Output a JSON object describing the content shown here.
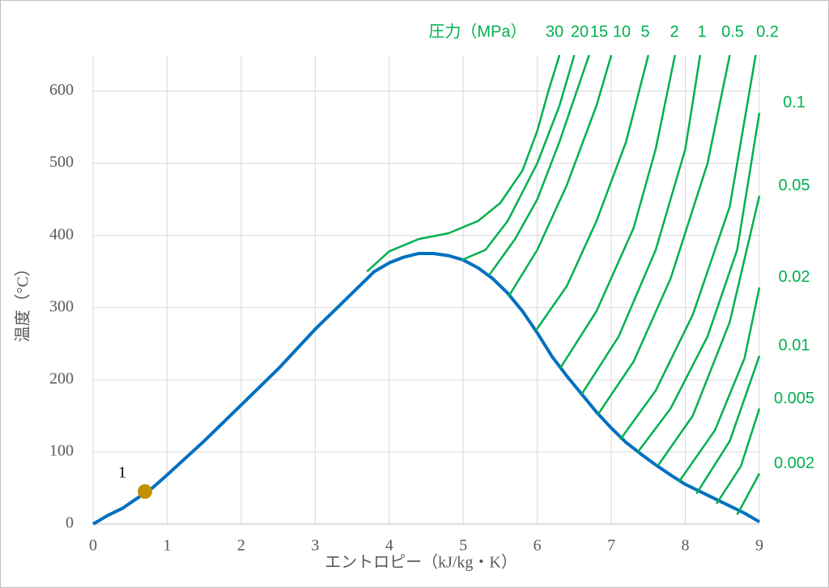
{
  "chart_data": {
    "type": "line",
    "title": "圧力（MPa）",
    "x_label": "エントロピー（kJ/kg・K）",
    "y_label": "温度（°C）",
    "xlim": [
      0,
      9
    ],
    "ylim": [
      0,
      650
    ],
    "xticks": [
      0,
      1,
      2,
      3,
      4,
      5,
      6,
      7,
      8,
      9
    ],
    "yticks": [
      0,
      100,
      200,
      300,
      400,
      500,
      600
    ],
    "grid": true,
    "series": [
      {
        "color": "#0070c0",
        "x": [
          0,
          0.2,
          0.4,
          0.6,
          0.8,
          1.0,
          1.5,
          2.0,
          2.5,
          3.0,
          3.5,
          3.8,
          4.0,
          4.2,
          4.4,
          4.6,
          4.8,
          5.0,
          5.2,
          5.4,
          5.6,
          5.8,
          6.0,
          6.2,
          6.4,
          6.6,
          6.8,
          7.0,
          7.2,
          7.4,
          7.6,
          7.8,
          8.0,
          8.2,
          8.4,
          8.6,
          8.8,
          9.0
        ],
        "y": [
          0,
          12,
          22,
          36,
          50,
          68,
          115,
          165,
          215,
          270,
          320,
          350,
          362,
          370,
          375,
          375,
          372,
          366,
          355,
          340,
          320,
          295,
          265,
          232,
          205,
          180,
          155,
          133,
          113,
          97,
          82,
          68,
          55,
          45,
          35,
          25,
          15,
          3
        ]
      },
      {
        "name": "30",
        "color": "#00b050",
        "x": [
          3.7,
          4.0,
          4.4,
          4.8,
          5.2,
          5.5,
          5.8,
          6.0,
          6.15,
          6.3
        ],
        "y": [
          350,
          378,
          395,
          403,
          420,
          445,
          490,
          545,
          600,
          650
        ]
      },
      {
        "name": "20",
        "color": "#00b050",
        "x": [
          4.98,
          5.3,
          5.6,
          6.0,
          6.3,
          6.5
        ],
        "y": [
          366,
          380,
          420,
          500,
          580,
          650
        ]
      },
      {
        "name": "15",
        "color": "#00b050",
        "x": [
          5.35,
          5.7,
          6.0,
          6.3,
          6.7
        ],
        "y": [
          345,
          395,
          450,
          530,
          650
        ]
      },
      {
        "name": "10",
        "color": "#00b050",
        "x": [
          5.61,
          6.0,
          6.4,
          6.8,
          7.0
        ],
        "y": [
          315,
          380,
          470,
          580,
          650
        ]
      },
      {
        "name": "5",
        "color": "#00b050",
        "x": [
          5.98,
          6.4,
          6.8,
          7.2,
          7.5
        ],
        "y": [
          268,
          330,
          420,
          530,
          650
        ]
      },
      {
        "name": "2",
        "color": "#00b050",
        "x": [
          6.31,
          6.8,
          7.3,
          7.6,
          7.86
        ],
        "y": [
          216,
          295,
          410,
          520,
          650
        ]
      },
      {
        "name": "1",
        "color": "#00b050",
        "x": [
          6.6,
          7.1,
          7.6,
          8.0,
          8.2
        ],
        "y": [
          180,
          260,
          380,
          520,
          650
        ]
      },
      {
        "name": "0.5",
        "color": "#00b050",
        "x": [
          6.82,
          7.3,
          7.8,
          8.3,
          8.6
        ],
        "y": [
          152,
          225,
          340,
          500,
          650
        ]
      },
      {
        "name": "0.2",
        "color": "#00b050",
        "x": [
          7.12,
          7.6,
          8.1,
          8.6,
          8.95
        ],
        "y": [
          117,
          185,
          290,
          440,
          650
        ]
      },
      {
        "name": "0.1",
        "color": "#00b050",
        "x": [
          7.36,
          7.8,
          8.3,
          8.7,
          9.0
        ],
        "y": [
          100,
          160,
          260,
          380,
          570
        ]
      },
      {
        "name": "0.05",
        "color": "#00b050",
        "x": [
          7.63,
          8.1,
          8.6,
          9.0
        ],
        "y": [
          81,
          150,
          280,
          455
        ]
      },
      {
        "name": "0.02",
        "color": "#00b050",
        "x": [
          7.91,
          8.4,
          8.8,
          9.0
        ],
        "y": [
          58,
          130,
          230,
          328
        ]
      },
      {
        "name": "0.01",
        "color": "#00b050",
        "x": [
          8.15,
          8.6,
          9.0
        ],
        "y": [
          42,
          115,
          233
        ]
      },
      {
        "name": "0.005",
        "color": "#00b050",
        "x": [
          8.42,
          8.75,
          9.0
        ],
        "y": [
          28,
          80,
          160
        ]
      },
      {
        "name": "0.002",
        "color": "#00b050",
        "x": [
          8.7,
          9.0
        ],
        "y": [
          13,
          70
        ]
      }
    ],
    "points": [
      {
        "label": "1",
        "x": 0.7,
        "y": 45,
        "color": "#bf9000"
      }
    ]
  }
}
